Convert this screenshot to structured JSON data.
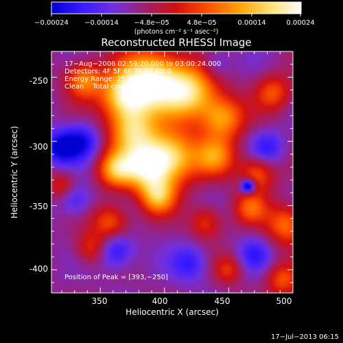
{
  "colorbar": {
    "ticks": [
      "−0.00024",
      "−0.00014",
      "−4.8e−05",
      "4.8e−05",
      "0.00014",
      "0.00024"
    ],
    "units": "(photons cm⁻² s⁻¹ asec⁻²)",
    "range": [
      -0.00024,
      0.00024
    ],
    "colors": [
      "#0000d0",
      "#3a1aff",
      "#7030e0",
      "#a0206e",
      "#d01010",
      "#ff5000",
      "#ffa000",
      "#ffe070",
      "#ffffff"
    ]
  },
  "chart_data": {
    "type": "heatmap",
    "title": "Reconstructed RHESSI Image",
    "xlabel": "Heliocentric X (arcsec)",
    "ylabel": "Heliocentric Y (arcsec)",
    "xlim": [
      312,
      500
    ],
    "ylim": [
      -418,
      -230
    ],
    "xticks": [
      350,
      400,
      450,
      500
    ],
    "yticks": [
      -250,
      -300,
      -350,
      -400
    ],
    "annotations": [
      "17−Aug−2006 02:59:20.000 to 03:00:24.000",
      "Detectors: 4F 5F 6F 7F 8F  Att 0",
      "Energy Range: 25.0 − 50.0 keV",
      "Clean    Total counts: 1.91E+03"
    ],
    "peak_label": "Position of Peak = [393,−250]",
    "peak": [
      393,
      -250
    ],
    "hotspots": [
      {
        "x": 390,
        "y": -253,
        "amp": 1.0,
        "sigma": 17
      },
      {
        "x": 368,
        "y": -265,
        "amp": 0.75,
        "sigma": 13
      },
      {
        "x": 420,
        "y": -262,
        "amp": 0.8,
        "sigma": 15
      },
      {
        "x": 445,
        "y": -282,
        "amp": 0.65,
        "sigma": 12
      },
      {
        "x": 375,
        "y": -292,
        "amp": 0.72,
        "sigma": 13
      },
      {
        "x": 405,
        "y": -312,
        "amp": 0.85,
        "sigma": 15
      },
      {
        "x": 385,
        "y": -320,
        "amp": 0.8,
        "sigma": 13
      },
      {
        "x": 362,
        "y": -322,
        "amp": 0.65,
        "sigma": 10
      },
      {
        "x": 440,
        "y": -312,
        "amp": 0.55,
        "sigma": 11
      },
      {
        "x": 395,
        "y": -343,
        "amp": 0.65,
        "sigma": 10
      },
      {
        "x": 337,
        "y": -252,
        "amp": 0.6,
        "sigma": 10
      },
      {
        "x": 485,
        "y": -262,
        "amp": 0.45,
        "sigma": 10
      },
      {
        "x": 472,
        "y": -325,
        "amp": 0.5,
        "sigma": 10
      },
      {
        "x": 495,
        "y": -365,
        "amp": 0.55,
        "sigma": 11
      },
      {
        "x": 467,
        "y": -352,
        "amp": 0.45,
        "sigma": 9
      },
      {
        "x": 358,
        "y": -363,
        "amp": 0.5,
        "sigma": 10
      },
      {
        "x": 432,
        "y": -363,
        "amp": 0.4,
        "sigma": 9
      },
      {
        "x": 343,
        "y": -383,
        "amp": 0.4,
        "sigma": 9
      },
      {
        "x": 492,
        "y": -408,
        "amp": 0.45,
        "sigma": 9
      },
      {
        "x": 450,
        "y": -400,
        "amp": 0.35,
        "sigma": 8
      },
      {
        "x": 320,
        "y": -335,
        "amp": 0.35,
        "sigma": 8
      },
      {
        "x": 335,
        "y": -300,
        "amp": -0.45,
        "sigma": 10
      },
      {
        "x": 318,
        "y": -305,
        "amp": -0.5,
        "sigma": 9
      },
      {
        "x": 362,
        "y": -385,
        "amp": -0.45,
        "sigma": 10
      },
      {
        "x": 330,
        "y": -345,
        "amp": -0.35,
        "sigma": 9
      },
      {
        "x": 465,
        "y": -335,
        "amp": -0.85,
        "sigma": 4
      },
      {
        "x": 480,
        "y": -305,
        "amp": -0.35,
        "sigma": 9
      },
      {
        "x": 420,
        "y": -395,
        "amp": -0.35,
        "sigma": 10
      },
      {
        "x": 470,
        "y": -388,
        "amp": -0.3,
        "sigma": 9
      },
      {
        "x": 440,
        "y": -240,
        "amp": -0.25,
        "sigma": 8
      }
    ],
    "grid": false
  },
  "footer": {
    "timestamp": "17−Jul−2013 06:15"
  }
}
